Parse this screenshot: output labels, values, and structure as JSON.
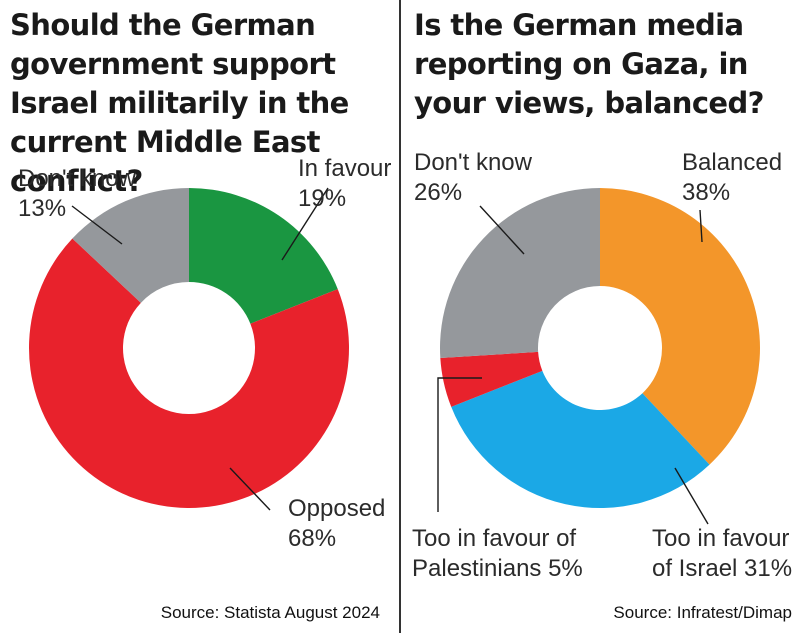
{
  "chart_data": [
    {
      "type": "pie",
      "title": "Should the German government support Israel militarily in the current Middle East conflict?",
      "categories": [
        "In favour",
        "Opposed",
        "Don't know"
      ],
      "values": [
        19,
        68,
        13
      ],
      "value_labels": [
        "19%",
        "68%",
        "13%"
      ],
      "colors": [
        "#1a9641",
        "#e8222c",
        "#95989c"
      ],
      "source": "Source: Statista August 2024"
    },
    {
      "type": "pie",
      "title": "Is the German media reporting on Gaza, in your views, balanced?",
      "categories": [
        "Balanced",
        "Too in favour of Israel",
        "Too in favour of Palestinians",
        "Don't know"
      ],
      "label_lines": [
        [
          "Balanced",
          "38%"
        ],
        [
          "Too in favour",
          "of Israel 31%"
        ],
        [
          "Too in favour of",
          "Palestinians 5%"
        ],
        [
          "Don't know",
          "26%"
        ]
      ],
      "values": [
        38,
        31,
        5,
        26
      ],
      "colors": [
        "#f3962a",
        "#1ba8e6",
        "#e8222c",
        "#95989c"
      ],
      "source": "Source: Infratest/Dimap"
    }
  ]
}
